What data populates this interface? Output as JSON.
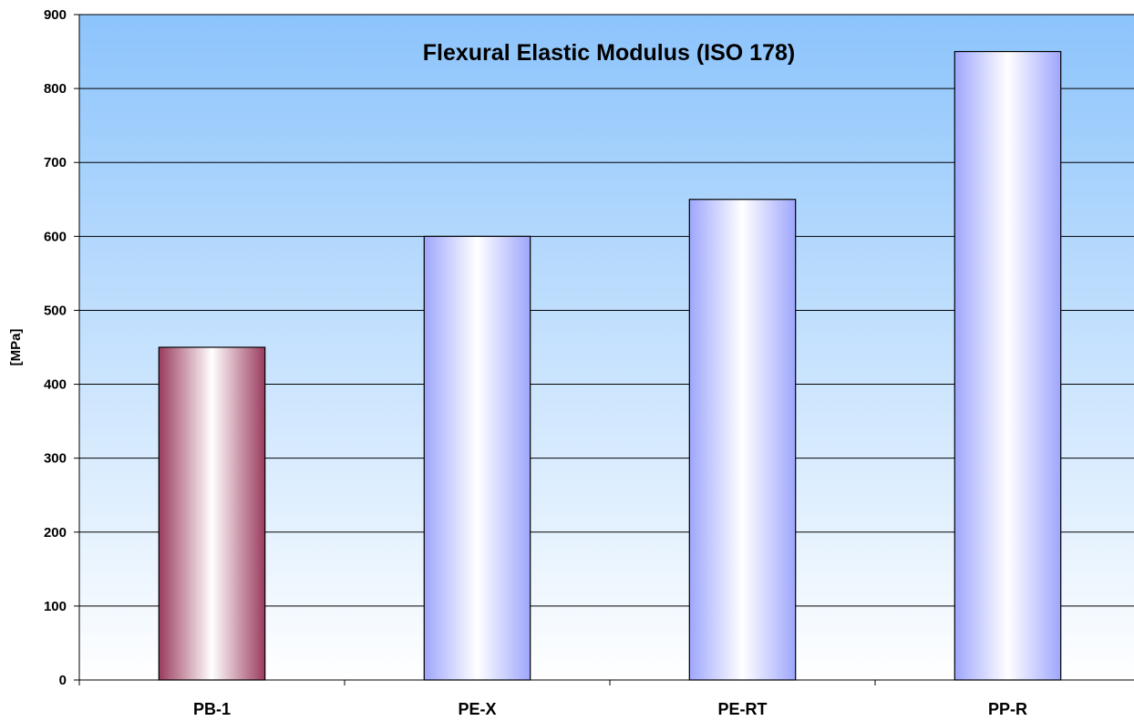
{
  "chart_data": {
    "type": "bar",
    "title": "Flexural Elastic Modulus (ISO 178)",
    "xlabel": "",
    "ylabel": "[MPa]",
    "categories": [
      "PB-1",
      "PE-X",
      "PE-RT",
      "PP-R"
    ],
    "values": [
      450,
      600,
      650,
      850
    ],
    "ylim": [
      0,
      900
    ],
    "yticks": [
      0,
      100,
      200,
      300,
      400,
      500,
      600,
      700,
      800,
      900
    ],
    "grid": true,
    "legend": "none",
    "colors": {
      "background_top": "#8cc4fc",
      "background_bottom": "#ffffff",
      "bar_highlight": "#9b3b5e",
      "bar_default": "#9ea6fc",
      "bar_center": "#ffffff",
      "gridline": "#000000"
    }
  }
}
